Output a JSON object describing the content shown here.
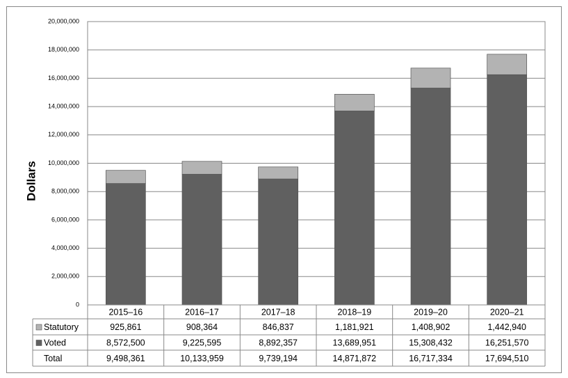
{
  "chart_data": {
    "type": "stacked-bar",
    "y_label": "Dollars",
    "categories": [
      "2015–16",
      "2016–17",
      "2017–18",
      "2018–19",
      "2019–20",
      "2020–21"
    ],
    "series": [
      {
        "name": "Voted",
        "color": "#606060",
        "values": [
          8572500,
          9225595,
          8892357,
          13689951,
          15308432,
          16251570
        ],
        "value_labels": [
          "8,572,500",
          "9,225,595",
          "8,892,357",
          "13,689,951",
          "15,308,432",
          "16,251,570"
        ]
      },
      {
        "name": "Statutory",
        "color": "#b3b3b3",
        "values": [
          925861,
          908364,
          846837,
          1181921,
          1408902,
          1442940
        ],
        "value_labels": [
          "925,861",
          "908,364",
          "846,837",
          "1,181,921",
          "1,408,902",
          "1,442,940"
        ]
      }
    ],
    "total": {
      "name": "Total",
      "values": [
        9498361,
        10133959,
        9739194,
        14871872,
        16717334,
        17694510
      ],
      "value_labels": [
        "9,498,361",
        "10,133,959",
        "9,739,194",
        "14,871,872",
        "16,717,334",
        "17,694,510"
      ]
    },
    "ylim": [
      0,
      20000000
    ],
    "yticks": [
      0,
      {
        "value": 2000000,
        "label": "2,000,000"
      },
      {
        "value": 4000000,
        "label": "4,000,000"
      },
      {
        "value": 6000000,
        "label": "6,000,000"
      },
      {
        "value": 8000000,
        "label": "8,000,000"
      },
      {
        "value": 10000000,
        "label": "10,000,000"
      },
      {
        "value": 12000000,
        "label": "12,000,000"
      },
      {
        "value": 14000000,
        "label": "14,000,000"
      },
      {
        "value": 16000000,
        "label": "16,000,000"
      },
      {
        "value": 18000000,
        "label": "18,000,000"
      },
      {
        "value": 20000000,
        "label": "20,000,000"
      }
    ],
    "grid": true
  }
}
